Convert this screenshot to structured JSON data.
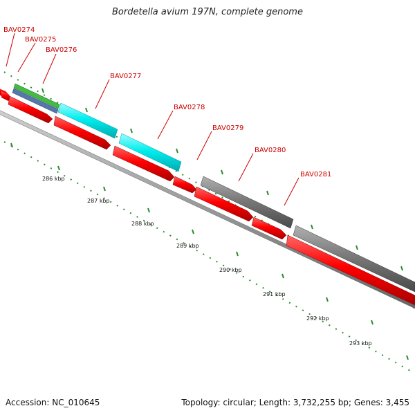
{
  "title": "Bordetella avium 197N, complete genome",
  "footer": {
    "accession": "Accession: NC_010645",
    "summary": "Topology: circular; Length: 3,732,255 bp; Genes: 3,455"
  },
  "colors": {
    "cds_red": "#ff0000",
    "cyan": "#00e5ee",
    "gray": "#808080",
    "green": "#44bb44",
    "steel_blue": "#5577aa",
    "backbone": "#999999",
    "tick": "#2e8b2e",
    "label": "#cc0000"
  },
  "genes": [
    {
      "name": "BAV0274"
    },
    {
      "name": "BAV0275"
    },
    {
      "name": "BAV0276"
    },
    {
      "name": "BAV0277"
    },
    {
      "name": "BAV0278"
    },
    {
      "name": "BAV0279"
    },
    {
      "name": "BAV0280"
    },
    {
      "name": "BAV0281"
    }
  ],
  "ruler": [
    "286 kbp",
    "287 kbp",
    "288 kbp",
    "289 kbp",
    "290 kbp",
    "291 kbp",
    "292 kbp",
    "293 kbp"
  ]
}
